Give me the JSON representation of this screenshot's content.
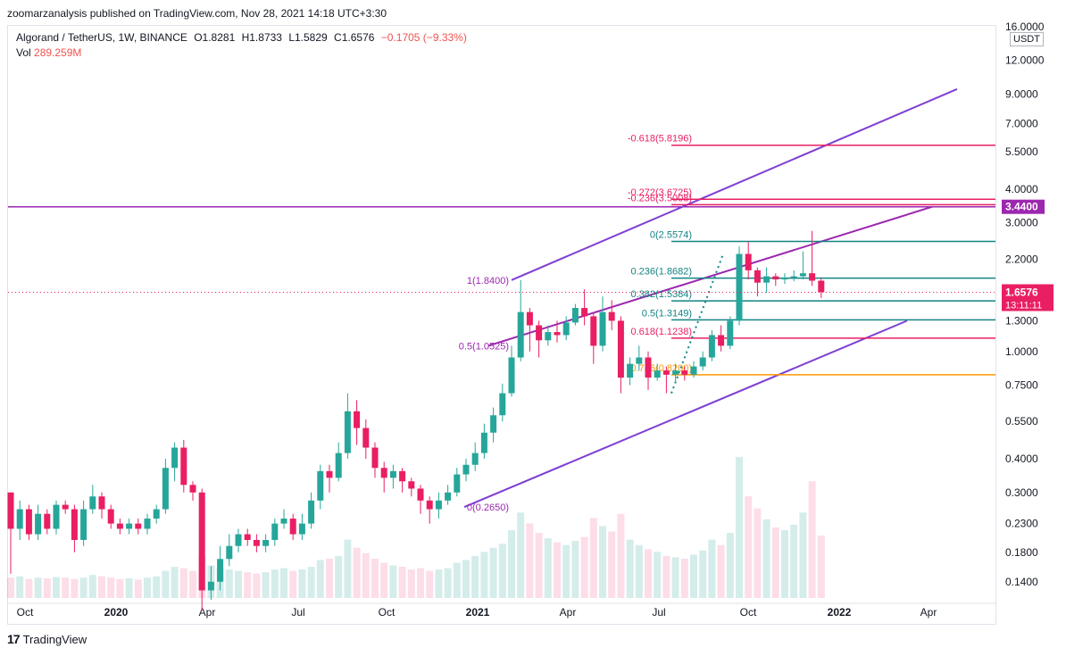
{
  "header": {
    "publisher": "zoomarzanalysis published on TradingView.com, Nov 28, 2021 14:18 UTC+3:30",
    "symbol": "Algorand / TetherUS, 1W, BINANCE",
    "open": "O1.8281",
    "high": "H1.8733",
    "low": "L1.5829",
    "close": "C1.6576",
    "change": "−0.1705 (−9.33%)",
    "vol_label": "Vol",
    "vol_value": "289.259M"
  },
  "footer": {
    "brand": "TradingView",
    "logo": "17"
  },
  "colors": {
    "up": "#26a69a",
    "down": "#e91e63",
    "channel": "#7e3fd4",
    "channel2": "#9c27b0",
    "fib_teal": "#138484",
    "fib_pink": "#e91e63",
    "fib_orange": "#ff9800",
    "hline": "#9c27b0"
  },
  "chart_data": {
    "type": "candlestick",
    "y_scale": "log",
    "ylim": [
      0.12,
      16
    ],
    "currency": "USDT",
    "price_ticks": [
      "16.0000",
      "12.0000",
      "9.0000",
      "7.0000",
      "5.5000",
      "4.0000",
      "3.0000",
      "2.2000",
      "1.3000",
      "1.0000",
      "0.7500",
      "0.5500",
      "0.4000",
      "0.3000",
      "0.2300",
      "0.1800",
      "0.1400"
    ],
    "time_ticks": [
      "Oct",
      "2020",
      "Apr",
      "Jul",
      "Oct",
      "2021",
      "Apr",
      "Jul",
      "Oct",
      "2022",
      "Apr"
    ],
    "current_price": "1.6576",
    "countdown": "13:11:11",
    "horizontal_level": "3.4400",
    "fib_levels": [
      {
        "label": "-0.618(5.8196)",
        "price": 5.82,
        "color": "fib_pink"
      },
      {
        "label": "-0.272(3.6725)",
        "price": 3.67,
        "color": "fib_pink"
      },
      {
        "label": "-0.236(3.5008)",
        "price": 3.5,
        "color": "fib_pink"
      },
      {
        "label": "0(2.5574)",
        "price": 2.56,
        "color": "fib_teal"
      },
      {
        "label": "0.236(1.8682)",
        "price": 1.87,
        "color": "fib_teal"
      },
      {
        "label": "0.382(1.5384)",
        "price": 1.54,
        "color": "fib_teal"
      },
      {
        "label": "0.5(1.3149)",
        "price": 1.31,
        "color": "fib_teal"
      },
      {
        "label": "0.618(1.1238)",
        "price": 1.12,
        "color": "fib_pink"
      },
      {
        "label": "0.786(0.8200)",
        "price": 0.82,
        "color": "fib_orange"
      }
    ],
    "anchor_labels": [
      {
        "label": "1(1.8400)",
        "price": 1.84
      },
      {
        "label": "0.5(1.0525)",
        "price": 1.05
      },
      {
        "label": "0(0.2650)",
        "price": 0.265
      }
    ],
    "candles": [
      [
        0.3,
        0.22,
        0.3,
        0.15
      ],
      [
        0.22,
        0.26,
        0.28,
        0.2
      ],
      [
        0.26,
        0.21,
        0.27,
        0.2
      ],
      [
        0.21,
        0.25,
        0.27,
        0.2
      ],
      [
        0.25,
        0.22,
        0.26,
        0.21
      ],
      [
        0.22,
        0.27,
        0.28,
        0.21
      ],
      [
        0.27,
        0.26,
        0.28,
        0.25
      ],
      [
        0.26,
        0.2,
        0.27,
        0.18
      ],
      [
        0.2,
        0.26,
        0.28,
        0.19
      ],
      [
        0.26,
        0.29,
        0.32,
        0.25
      ],
      [
        0.29,
        0.26,
        0.3,
        0.24
      ],
      [
        0.26,
        0.23,
        0.27,
        0.22
      ],
      [
        0.23,
        0.22,
        0.24,
        0.21
      ],
      [
        0.22,
        0.23,
        0.24,
        0.21
      ],
      [
        0.23,
        0.22,
        0.24,
        0.21
      ],
      [
        0.22,
        0.24,
        0.25,
        0.21
      ],
      [
        0.24,
        0.26,
        0.27,
        0.23
      ],
      [
        0.26,
        0.37,
        0.4,
        0.25
      ],
      [
        0.37,
        0.44,
        0.46,
        0.33
      ],
      [
        0.44,
        0.32,
        0.47,
        0.3
      ],
      [
        0.32,
        0.3,
        0.33,
        0.28
      ],
      [
        0.3,
        0.13,
        0.31,
        0.11
      ],
      [
        0.13,
        0.14,
        0.16,
        0.12
      ],
      [
        0.14,
        0.17,
        0.19,
        0.13
      ],
      [
        0.17,
        0.19,
        0.21,
        0.16
      ],
      [
        0.19,
        0.21,
        0.22,
        0.18
      ],
      [
        0.21,
        0.2,
        0.22,
        0.19
      ],
      [
        0.2,
        0.19,
        0.21,
        0.18
      ],
      [
        0.19,
        0.2,
        0.21,
        0.18
      ],
      [
        0.2,
        0.23,
        0.24,
        0.19
      ],
      [
        0.23,
        0.24,
        0.26,
        0.22
      ],
      [
        0.24,
        0.21,
        0.25,
        0.2
      ],
      [
        0.21,
        0.23,
        0.25,
        0.2
      ],
      [
        0.23,
        0.28,
        0.3,
        0.22
      ],
      [
        0.28,
        0.36,
        0.38,
        0.26
      ],
      [
        0.36,
        0.34,
        0.38,
        0.3
      ],
      [
        0.34,
        0.42,
        0.46,
        0.33
      ],
      [
        0.42,
        0.6,
        0.7,
        0.4
      ],
      [
        0.6,
        0.52,
        0.66,
        0.45
      ],
      [
        0.52,
        0.44,
        0.56,
        0.4
      ],
      [
        0.44,
        0.37,
        0.46,
        0.34
      ],
      [
        0.37,
        0.34,
        0.39,
        0.3
      ],
      [
        0.34,
        0.36,
        0.38,
        0.31
      ],
      [
        0.36,
        0.33,
        0.37,
        0.3
      ],
      [
        0.33,
        0.31,
        0.34,
        0.29
      ],
      [
        0.31,
        0.28,
        0.32,
        0.25
      ],
      [
        0.28,
        0.26,
        0.29,
        0.23
      ],
      [
        0.26,
        0.28,
        0.3,
        0.24
      ],
      [
        0.28,
        0.3,
        0.32,
        0.27
      ],
      [
        0.3,
        0.35,
        0.37,
        0.29
      ],
      [
        0.35,
        0.38,
        0.4,
        0.33
      ],
      [
        0.38,
        0.42,
        0.46,
        0.36
      ],
      [
        0.42,
        0.5,
        0.54,
        0.4
      ],
      [
        0.5,
        0.58,
        0.62,
        0.46
      ],
      [
        0.58,
        0.7,
        0.76,
        0.55
      ],
      [
        0.7,
        0.95,
        1.05,
        0.68
      ],
      [
        0.95,
        1.4,
        1.84,
        0.92
      ],
      [
        1.4,
        1.25,
        1.45,
        1.0
      ],
      [
        1.25,
        1.1,
        1.3,
        0.95
      ],
      [
        1.1,
        1.18,
        1.25,
        1.05
      ],
      [
        1.18,
        1.15,
        1.3,
        1.08
      ],
      [
        1.15,
        1.28,
        1.35,
        1.1
      ],
      [
        1.28,
        1.45,
        1.5,
        1.25
      ],
      [
        1.45,
        1.35,
        1.7,
        1.25
      ],
      [
        1.35,
        1.05,
        1.4,
        0.9
      ],
      [
        1.05,
        1.4,
        1.6,
        1.0
      ],
      [
        1.4,
        1.3,
        1.55,
        1.2
      ],
      [
        1.3,
        0.8,
        1.35,
        0.7
      ],
      [
        0.8,
        0.9,
        0.95,
        0.75
      ],
      [
        0.9,
        0.95,
        1.05,
        0.85
      ],
      [
        0.95,
        0.8,
        1.0,
        0.72
      ],
      [
        0.8,
        0.85,
        0.9,
        0.78
      ],
      [
        0.85,
        0.82,
        0.88,
        0.7
      ],
      [
        0.82,
        0.85,
        0.9,
        0.76
      ],
      [
        0.85,
        0.82,
        0.88,
        0.78
      ],
      [
        0.82,
        0.88,
        0.92,
        0.8
      ],
      [
        0.88,
        0.95,
        1.0,
        0.85
      ],
      [
        0.95,
        1.15,
        1.2,
        0.92
      ],
      [
        1.15,
        1.05,
        1.25,
        1.0
      ],
      [
        1.05,
        1.3,
        1.35,
        1.02
      ],
      [
        1.3,
        2.3,
        2.45,
        1.25
      ],
      [
        2.3,
        2.0,
        2.55,
        1.85
      ],
      [
        2.0,
        1.8,
        2.05,
        1.6
      ],
      [
        1.8,
        1.9,
        2.05,
        1.65
      ],
      [
        1.9,
        1.85,
        1.95,
        1.75
      ],
      [
        1.85,
        1.88,
        1.95,
        1.78
      ],
      [
        1.88,
        1.9,
        2.0,
        1.82
      ],
      [
        1.9,
        1.95,
        2.35,
        1.85
      ],
      [
        1.95,
        1.83,
        2.8,
        1.75
      ],
      [
        1.83,
        1.66,
        1.87,
        1.58
      ]
    ],
    "volumes": [
      30,
      32,
      28,
      30,
      29,
      31,
      30,
      28,
      30,
      34,
      32,
      30,
      28,
      29,
      27,
      30,
      32,
      40,
      46,
      44,
      40,
      62,
      48,
      44,
      42,
      40,
      38,
      36,
      38,
      42,
      44,
      40,
      42,
      46,
      56,
      58,
      62,
      86,
      74,
      66,
      58,
      52,
      48,
      46,
      42,
      44,
      40,
      42,
      44,
      52,
      56,
      62,
      68,
      74,
      80,
      100,
      126,
      110,
      96,
      88,
      82,
      78,
      84,
      90,
      118,
      106,
      98,
      124,
      86,
      78,
      72,
      68,
      62,
      60,
      58,
      64,
      70,
      86,
      78,
      96,
      208,
      150,
      132,
      116,
      104,
      100,
      108,
      126,
      172,
      92
    ]
  }
}
